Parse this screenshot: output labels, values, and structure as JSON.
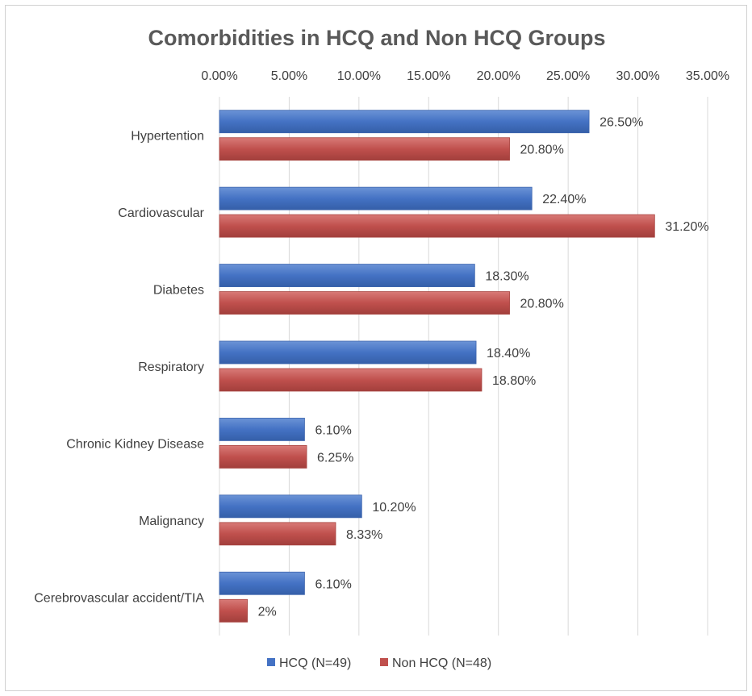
{
  "chart_data": {
    "type": "bar",
    "orientation": "horizontal",
    "title": "Comorbidities in HCQ and Non HCQ Groups",
    "xlabel": "",
    "ylabel": "",
    "xlim": [
      0,
      35
    ],
    "x_ticks": [
      "0.00%",
      "5.00%",
      "10.00%",
      "15.00%",
      "20.00%",
      "25.00%",
      "30.00%",
      "35.00%"
    ],
    "axis_position": "top",
    "grid": true,
    "legend_position": "bottom",
    "categories": [
      "Hypertention",
      "Cardiovascular",
      "Diabetes",
      "Respiratory",
      "Chronic Kidney Disease",
      "Malignancy",
      "Cerebrovascular accident/TIA"
    ],
    "series": [
      {
        "name": "HCQ (N=49)",
        "color": "#4472c4",
        "values": [
          26.5,
          22.4,
          18.3,
          18.4,
          6.1,
          10.2,
          6.1
        ],
        "labels": [
          "26.50%",
          "22.40%",
          "18.30%",
          "18.40%",
          "6.10%",
          "10.20%",
          "6.10%"
        ]
      },
      {
        "name": "Non HCQ (N=48)",
        "color": "#c0504d",
        "values": [
          20.8,
          31.2,
          20.8,
          18.8,
          6.25,
          8.33,
          2
        ],
        "labels": [
          "20.80%",
          "31.20%",
          "20.80%",
          "18.80%",
          "6.25%",
          "8.33%",
          "2%"
        ]
      }
    ]
  }
}
